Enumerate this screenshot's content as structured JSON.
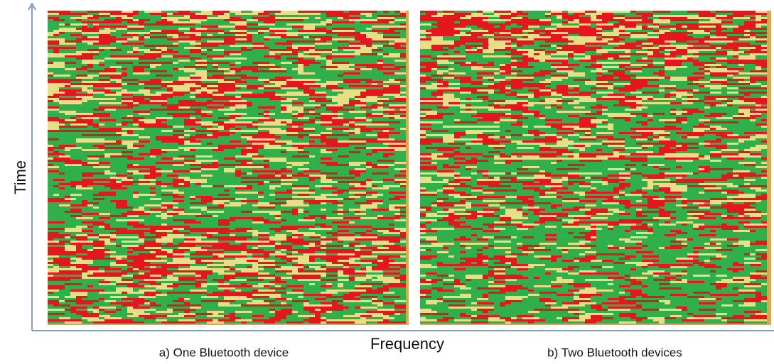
{
  "figure": {
    "y_axis_label": "Time",
    "x_axis_label": "Frequency",
    "panels": [
      {
        "caption": "a) One Bluetooth device"
      },
      {
        "caption": "b) Two Bluetooth devices"
      }
    ]
  }
}
